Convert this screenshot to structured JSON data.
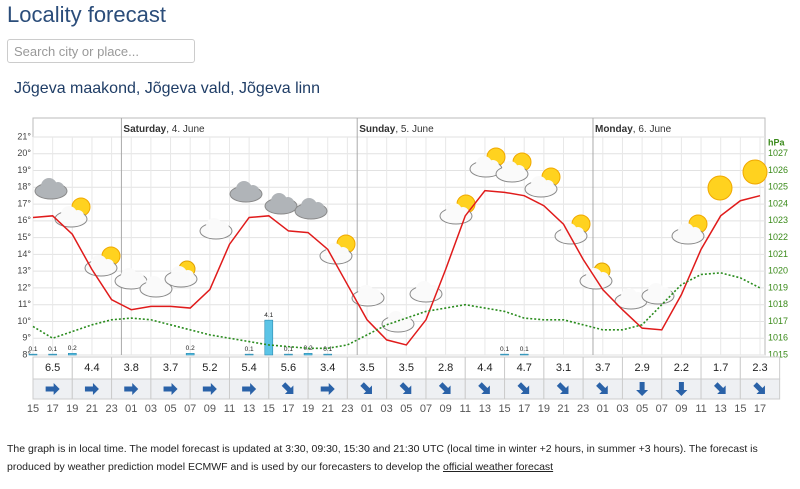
{
  "header": {
    "title": "Locality forecast"
  },
  "search": {
    "placeholder": "Search city or place..."
  },
  "location": "Jõgeva maakond, Jõgeva vald, Jõgeva linn",
  "chart_data": {
    "type": "line",
    "categories": [
      "15",
      "17",
      "19",
      "21",
      "23",
      "01",
      "03",
      "05",
      "07",
      "09",
      "11",
      "13",
      "15",
      "17",
      "19",
      "21",
      "23",
      "01",
      "03",
      "05",
      "07",
      "09",
      "11",
      "13",
      "15",
      "17",
      "19",
      "21",
      "23",
      "01",
      "03",
      "05",
      "07",
      "09",
      "11",
      "13",
      "15",
      "17"
    ],
    "days": [
      {
        "name": "Saturday",
        "date": ", 4. June"
      },
      {
        "name": "Sunday",
        "date": ", 5. June"
      },
      {
        "name": "Monday",
        "date": ", 6. June"
      }
    ],
    "series": [
      {
        "color": "#e01b1b",
        "values": [
          16.2,
          16.3,
          15.2,
          13.1,
          11.3,
          10.7,
          10.9,
          10.9,
          10.8,
          11.9,
          14.6,
          16.2,
          16.3,
          15.4,
          15.3,
          14.3,
          12.2,
          10.1,
          8.9,
          8.6,
          10.1,
          13.1,
          16.3,
          17.8,
          17.7,
          17.5,
          16.9,
          15.8,
          13.7,
          11.9,
          10.7,
          9.6,
          9.5,
          11.6,
          14.3,
          16.3,
          17.2,
          17.5
        ]
      },
      {
        "color": "#2a8c1e",
        "axis": "y2",
        "style": "dotted",
        "values": [
          1016.7,
          1016.0,
          1016.4,
          1016.8,
          1017.1,
          1017.2,
          1017.1,
          1016.8,
          1016.5,
          1016.2,
          1016.0,
          1015.8,
          1015.6,
          1015.5,
          1015.4,
          1015.4,
          1015.6,
          1016.2,
          1016.8,
          1017.2,
          1017.6,
          1017.8,
          1018.0,
          1017.8,
          1017.6,
          1017.2,
          1017.1,
          1017.1,
          1016.8,
          1016.5,
          1016.5,
          1016.8,
          1018.0,
          1019.2,
          1019.8,
          1019.9,
          1019.6,
          1019.0
        ]
      }
    ],
    "precipitation": {
      "color": "#5bc4e6",
      "values": [
        0.1,
        0.1,
        0.2,
        null,
        null,
        null,
        null,
        null,
        0.2,
        null,
        null,
        0.1,
        4.1,
        0.1,
        0.2,
        0.1,
        null,
        null,
        null,
        null,
        null,
        null,
        null,
        null,
        0.1,
        0.1,
        null,
        null,
        null,
        null,
        null,
        null,
        null,
        null,
        null,
        null,
        null,
        null
      ]
    },
    "wind": {
      "color": "#2a62a8",
      "speed": [
        6.5,
        4.4,
        3.8,
        3.7,
        5.2,
        5.4,
        5.6,
        3.4,
        3.5,
        3.5,
        2.8,
        4.4,
        4.7,
        3.1,
        3.7,
        2.9,
        2.2,
        1.7,
        2.3
      ],
      "from_deg": [
        270,
        270,
        270,
        270,
        270,
        270,
        315,
        270,
        315,
        315,
        315,
        315,
        315,
        315,
        315,
        0,
        0,
        315,
        315
      ]
    },
    "ylim": [
      8,
      21
    ],
    "yticks": [
      {
        "value": 8,
        "label": "8°"
      },
      {
        "value": 9,
        "label": "9°"
      },
      {
        "value": 10,
        "label": "10°"
      },
      {
        "value": 11,
        "label": "11°"
      },
      {
        "value": 12,
        "label": "12°"
      },
      {
        "value": 13,
        "label": "13°"
      },
      {
        "value": 14,
        "label": "14°"
      },
      {
        "value": 15,
        "label": "15°"
      },
      {
        "value": 16,
        "label": "16°"
      },
      {
        "value": 17,
        "label": "17°"
      },
      {
        "value": 18,
        "label": "18°"
      },
      {
        "value": 19,
        "label": "19°"
      },
      {
        "value": 20,
        "label": "20°"
      },
      {
        "value": 21,
        "label": "21°"
      }
    ],
    "y2lim": [
      1015,
      1028
    ],
    "y2ticks": [
      1015,
      1016,
      1017,
      1018,
      1019,
      1020,
      1021,
      1022,
      1023,
      1024,
      1025,
      1026,
      1027
    ],
    "y2label": "hPa",
    "grid": true
  },
  "footer": {
    "text": "The graph is in local time. The model forecast is updated at 3:30, 09:30, 15:30 and 21:30 UTC (local time in winter +2 hours, in summer +3 hours).  The forecast is produced by weather prediction model ECMWF and is used by our forecasters to develop the ",
    "link": "official weather forecast"
  }
}
